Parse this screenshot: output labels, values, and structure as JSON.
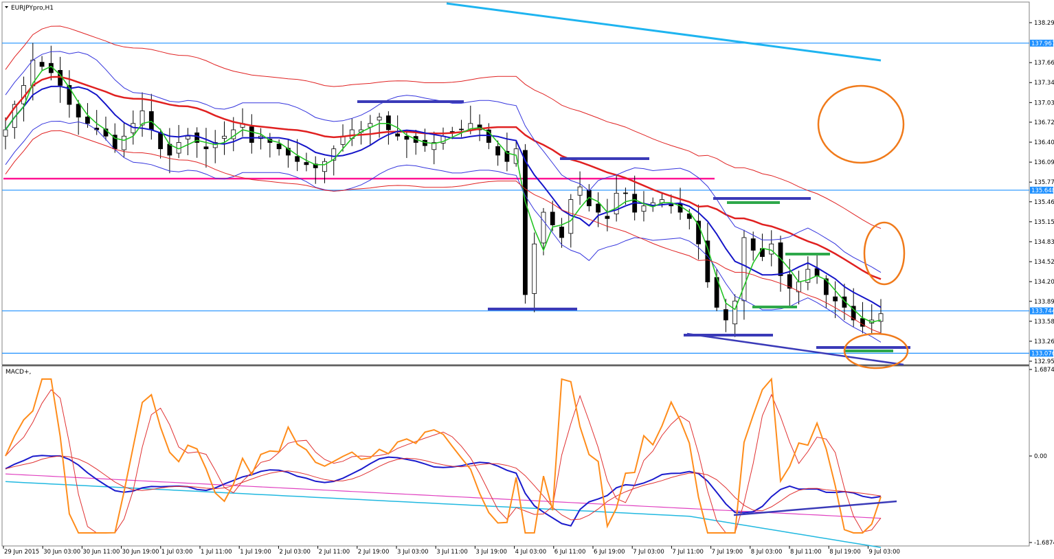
{
  "window": {
    "title": "EURJPYpro,H1",
    "menu_icon": "triangle-down-icon"
  },
  "chart_data": [
    {
      "type": "candlestick",
      "title": "EURJPYpro,H1",
      "symbol": "EURJPYpro",
      "timeframe": "H1",
      "ylim": [
        132.95,
        138.5
      ],
      "y_ticks": [
        "138.290",
        "137.660",
        "137.345",
        "137.030",
        "136.720",
        "136.405",
        "136.090",
        "135.775",
        "135.465",
        "135.150",
        "134.835",
        "134.520",
        "134.205",
        "133.895",
        "133.580",
        "133.265",
        "132.950"
      ],
      "x_ticks": [
        "29 Jun 2015",
        "30 Jun 03:00",
        "30 Jun 11:00",
        "30 Jun 19:00",
        "1 Jul 03:00",
        "1 Jul 11:00",
        "1 Jul 19:00",
        "2 Jul 03:00",
        "2 Jul 11:00",
        "2 Jul 19:00",
        "3 Jul 03:00",
        "3 Jul 11:00",
        "3 Jul 19:00",
        "4 Jul 03:00",
        "6 Jul 11:00",
        "6 Jul 19:00",
        "7 Jul 03:00",
        "7 Jul 11:00",
        "7 Jul 19:00",
        "8 Jul 03:00",
        "8 Jul 11:00",
        "8 Jul 19:00",
        "9 Jul 03:00"
      ],
      "horizontal_levels": [
        {
          "price": "137.967",
          "color": "#1e90ff"
        },
        {
          "price": "135.648",
          "color": "#1e90ff"
        },
        {
          "price": "133.744",
          "color": "#1e90ff"
        },
        {
          "price": "133.076",
          "color": "#1e90ff"
        },
        {
          "price": "135.83",
          "color": "#ff1493"
        }
      ],
      "price_tags": [
        "137.967",
        "135.648",
        "133.744",
        "133.076"
      ],
      "grid": false,
      "close_series": [
        136.6,
        137.0,
        137.3,
        137.7,
        137.6,
        137.5,
        137.3,
        137.0,
        136.8,
        136.7,
        136.6,
        136.5,
        136.3,
        136.5,
        136.7,
        136.9,
        136.6,
        136.3,
        136.2,
        136.4,
        136.5,
        136.4,
        136.3,
        136.4,
        136.5,
        136.6,
        136.7,
        136.4,
        136.5,
        136.4,
        136.3,
        136.2,
        136.1,
        136.05,
        136.0,
        136.1,
        136.3,
        136.5,
        136.6,
        136.6,
        136.7,
        136.8,
        136.6,
        136.5,
        136.45,
        136.4,
        136.35,
        136.4,
        136.5,
        136.55,
        136.6,
        136.7,
        136.6,
        136.4,
        136.2,
        136.1,
        136.3,
        134.0,
        134.8,
        135.3,
        135.1,
        134.9,
        135.5,
        135.7,
        135.4,
        135.3,
        135.2,
        135.6,
        135.6,
        135.3,
        135.4,
        135.45,
        135.5,
        135.4,
        135.3,
        135.2,
        134.8,
        134.2,
        133.8,
        133.6,
        133.9,
        134.9,
        134.7,
        134.6,
        134.8,
        134.3,
        134.1,
        134.2,
        134.4,
        134.3,
        134.0,
        133.9,
        133.8,
        133.6,
        133.5,
        133.6,
        133.7
      ]
    },
    {
      "type": "line",
      "title": "MACD+,",
      "ylim": [
        -1.6874,
        1.6874
      ],
      "y_ticks": [
        "1.6874",
        "0.00",
        "-1.6874"
      ],
      "series_colors": [
        "#ff8c1a",
        "#e03030",
        "#1a1acc",
        "#e040c0",
        "#20b8e0"
      ]
    }
  ],
  "colors": {
    "sma_red": "#e02020",
    "ema_blue": "#1414c8",
    "fast_green": "#22c422",
    "bollinger": "#3333dd",
    "envelope": "#e02020",
    "trend_cyan": "#1eb4f0",
    "support_resistance_blue": "#3a3ab8",
    "support_green": "#2ea84a",
    "annotation_orange": "#f07a1a",
    "pink_level": "#ff1493",
    "price_tag_bg": "#1e90ff"
  }
}
